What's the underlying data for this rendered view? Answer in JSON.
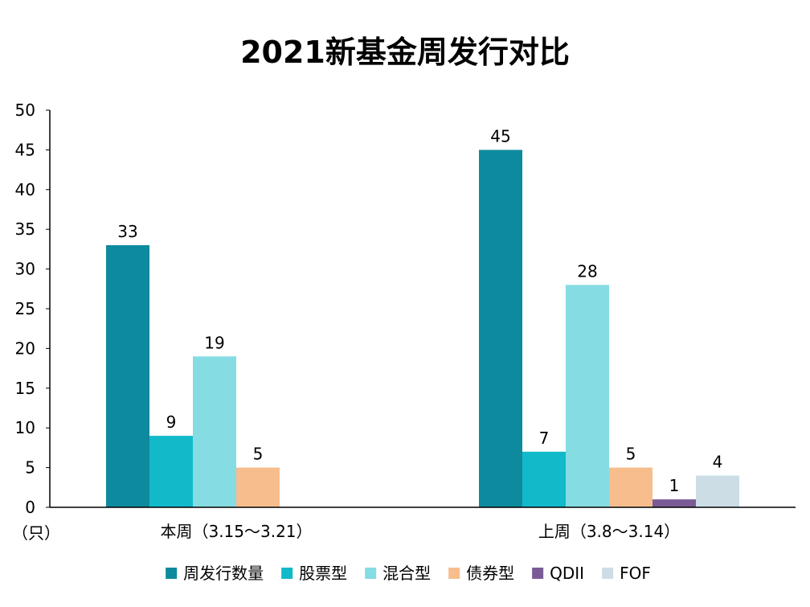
{
  "chart_data": {
    "type": "bar",
    "title": "2021新基金周发行对比",
    "unit_label": "（只）",
    "categories": [
      "本周（3.15～3.21）",
      "上周（3.8～3.14）"
    ],
    "ylim": [
      0,
      50
    ],
    "yticks": [
      0,
      5,
      10,
      15,
      20,
      25,
      30,
      35,
      40,
      45,
      50
    ],
    "grid": false,
    "legend_position": "bottom",
    "series": [
      {
        "name": "周发行数量",
        "color": "#0E8A9E",
        "values": [
          33,
          45
        ]
      },
      {
        "name": "股票型",
        "color": "#12B9C9",
        "values": [
          9,
          7
        ]
      },
      {
        "name": "混合型",
        "color": "#86DCE3",
        "values": [
          19,
          28
        ]
      },
      {
        "name": "债券型",
        "color": "#F7BD8D",
        "values": [
          5,
          5
        ]
      },
      {
        "name": "QDII",
        "color": "#7A5B96",
        "values": [
          null,
          1
        ]
      },
      {
        "name": "FOF",
        "color": "#CCDDE6",
        "values": [
          null,
          4
        ]
      }
    ]
  }
}
